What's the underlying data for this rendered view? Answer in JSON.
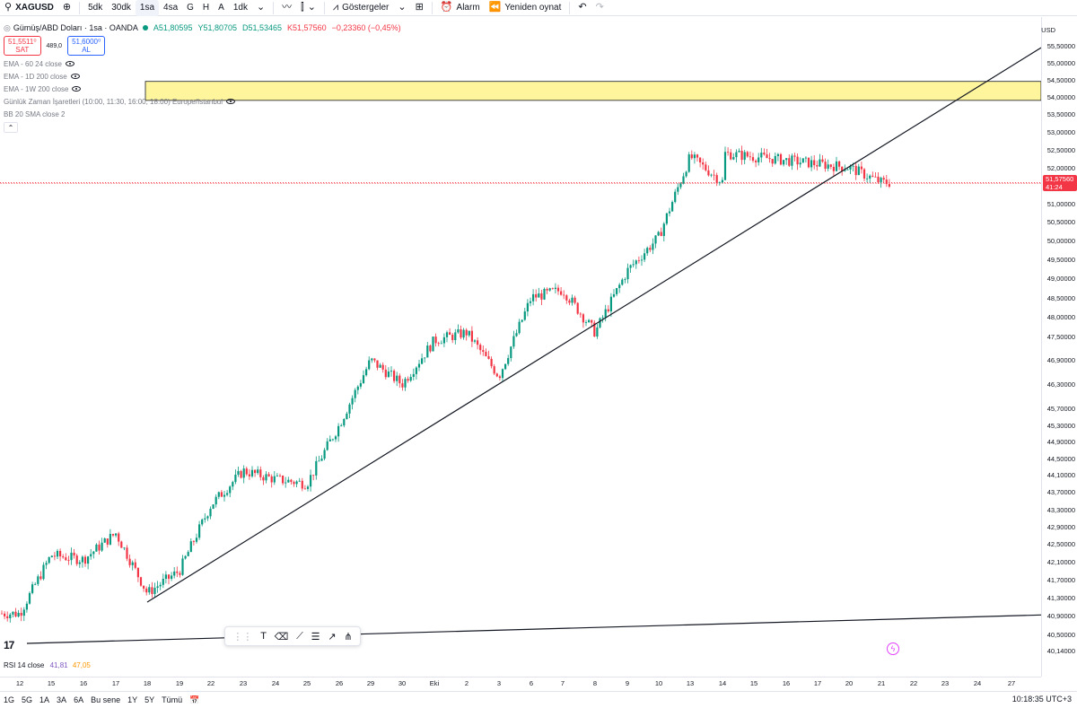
{
  "toolbar": {
    "symbol": "XAGUSD",
    "intervals": [
      "5dk",
      "30dk",
      "1sa",
      "4sa",
      "G",
      "H",
      "A",
      "1dk"
    ],
    "active_interval": "1sa",
    "indicators_label": "Göstergeler",
    "alarm_label": "Alarm",
    "replay_label": "Yeniden oynat"
  },
  "legend": {
    "title": "Gümüş/ABD Doları · 1sa · OANDA",
    "open": "A51,80595",
    "high": "Y51,80705",
    "low": "D51,53465",
    "close": "K51,57560",
    "change": "−0,23360 (−0,45%)",
    "sell_price": "51,5511⁰",
    "sell_label": "SAT",
    "spread": "489,0",
    "buy_price": "51,6000⁰",
    "buy_label": "AL",
    "indicators": [
      "EMA - 60 24 close",
      "EMA - 1D 200 close",
      "EMA - 1W 200 close",
      "Günlük Zaman İşaretleri (10:00, 11:30, 16:00, 18:00) Europe/Istanbul",
      "BB 20 SMA close 2"
    ]
  },
  "price_axis": {
    "currency": "USD",
    "ticks": [
      "55,50000",
      "55,00000",
      "54,50000",
      "54,00000",
      "53,50000",
      "53,00000",
      "52,50000",
      "52,00000",
      "51,00000",
      "50,50000",
      "50,00000",
      "49,50000",
      "49,00000",
      "48,50000",
      "48,00000",
      "47,50000",
      "46,90000",
      "46,30000",
      "45,70000",
      "45,30000",
      "44,90000",
      "44,50000",
      "44,10000",
      "43,70000",
      "43,30000",
      "42,90000",
      "42,50000",
      "42,10000",
      "41,70000",
      "41,30000",
      "40,90000",
      "40,50000",
      "40,14000"
    ],
    "current_price": "51,57560",
    "countdown": "41:24"
  },
  "time_axis": {
    "ticks": [
      "12",
      "15",
      "16",
      "17",
      "18",
      "19",
      "22",
      "23",
      "24",
      "25",
      "26",
      "29",
      "30",
      "Eki",
      "2",
      "3",
      "6",
      "7",
      "8",
      "9",
      "10",
      "13",
      "14",
      "15",
      "16",
      "17",
      "20",
      "21",
      "22",
      "23",
      "24",
      "27"
    ]
  },
  "rsi": {
    "label": "RSI 14 close",
    "value_a": "41,81",
    "value_b": "47,05"
  },
  "bottombar": {
    "ranges": [
      "1G",
      "5G",
      "1A",
      "3A",
      "6A",
      "Bu sene",
      "1Y",
      "5Y",
      "Tümü"
    ],
    "clock": "10:18:35 UTC+3"
  },
  "colors": {
    "up": "#089981",
    "down": "#f23645",
    "zone_fill": "#fff59d",
    "trendline": "#131722"
  },
  "chart_data": {
    "type": "candlestick",
    "symbol": "XAGUSD",
    "timeframe": "1sa",
    "ylim": [
      40.0,
      55.8
    ],
    "y_scale": "log",
    "x_range": [
      "12",
      "27"
    ],
    "close_path": [
      {
        "t": "12",
        "v": 40.95
      },
      {
        "t": "15",
        "v": 42.25
      },
      {
        "t": "16",
        "v": 42.15
      },
      {
        "t": "17",
        "v": 42.75
      },
      {
        "t": "18",
        "v": 41.4
      },
      {
        "t": "19",
        "v": 41.9
      },
      {
        "t": "22",
        "v": 43.4
      },
      {
        "t": "23",
        "v": 44.2
      },
      {
        "t": "24",
        "v": 44.0
      },
      {
        "t": "25",
        "v": 43.9
      },
      {
        "t": "26",
        "v": 45.3
      },
      {
        "t": "29",
        "v": 46.9
      },
      {
        "t": "30",
        "v": 46.3
      },
      {
        "t": "Eki",
        "v": 47.4
      },
      {
        "t": "2",
        "v": 47.6
      },
      {
        "t": "3",
        "v": 46.5
      },
      {
        "t": "6",
        "v": 48.5
      },
      {
        "t": "7",
        "v": 48.7
      },
      {
        "t": "8",
        "v": 47.6
      },
      {
        "t": "9",
        "v": 49.2
      },
      {
        "t": "10",
        "v": 50.1
      },
      {
        "t": "13",
        "v": 52.3
      },
      {
        "t": "14",
        "v": 51.6
      },
      {
        "t": "15",
        "v": 52.6
      },
      {
        "t": "16",
        "v": 53.2
      },
      {
        "t": "17",
        "v": 54.3
      },
      {
        "t": "20",
        "v": 52.0
      },
      {
        "t": "21",
        "v": 51.58
      }
    ],
    "resistance_zone": [
      53.9,
      54.45
    ],
    "trendlines": [
      {
        "name": "support",
        "from": {
          "t": "18",
          "v": 41.2
        },
        "to": {
          "t": "27",
          "v": 54.9
        }
      },
      {
        "name": "lower",
        "from": {
          "t": "12",
          "v": 40.3
        },
        "to": {
          "t": "27",
          "v": 40.9
        }
      }
    ]
  }
}
